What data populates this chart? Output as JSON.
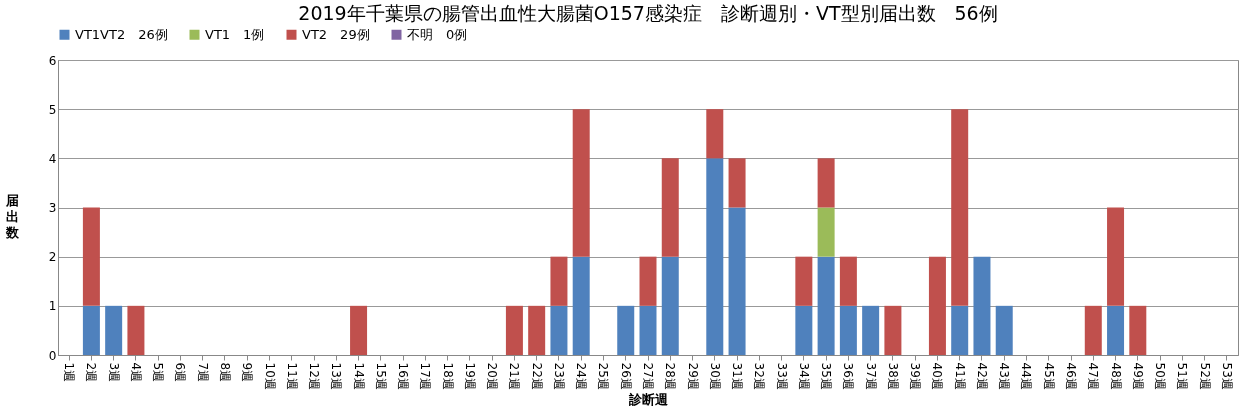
{
  "chart_data": {
    "type": "bar",
    "title": "2019年千葉県の腸管出血性大腸菌O157感染症　診断週別・VT型別届出数　56例",
    "xlabel": "診断週",
    "ylabel": "届出数",
    "categories": [
      "1週",
      "2週",
      "3週",
      "4週",
      "5週",
      "6週",
      "7週",
      "8週",
      "9週",
      "10週",
      "11週",
      "12週",
      "13週",
      "14週",
      "15週",
      "16週",
      "17週",
      "18週",
      "19週",
      "20週",
      "21週",
      "22週",
      "23週",
      "24週",
      "25週",
      "26週",
      "27週",
      "28週",
      "29週",
      "30週",
      "31週",
      "32週",
      "33週",
      "34週",
      "35週",
      "36週",
      "37週",
      "38週",
      "39週",
      "40週",
      "41週",
      "42週",
      "43週",
      "44週",
      "45週",
      "46週",
      "47週",
      "48週",
      "49週",
      "50週",
      "51週",
      "52週",
      "53週"
    ],
    "stacked": true,
    "series": [
      {
        "name": "VT1VT2　26例",
        "color": "#4f81bd",
        "values": [
          0,
          1,
          1,
          0,
          0,
          0,
          0,
          0,
          0,
          0,
          0,
          0,
          0,
          0,
          0,
          0,
          0,
          0,
          0,
          0,
          0,
          0,
          1,
          2,
          0,
          1,
          1,
          2,
          0,
          4,
          3,
          0,
          0,
          1,
          2,
          1,
          1,
          0,
          0,
          0,
          1,
          2,
          1,
          0,
          0,
          0,
          0,
          1,
          0,
          0,
          0,
          0,
          0
        ]
      },
      {
        "name": "VT1　1例",
        "color": "#9bbb59",
        "values": [
          0,
          0,
          0,
          0,
          0,
          0,
          0,
          0,
          0,
          0,
          0,
          0,
          0,
          0,
          0,
          0,
          0,
          0,
          0,
          0,
          0,
          0,
          0,
          0,
          0,
          0,
          0,
          0,
          0,
          0,
          0,
          0,
          0,
          0,
          1,
          0,
          0,
          0,
          0,
          0,
          0,
          0,
          0,
          0,
          0,
          0,
          0,
          0,
          0,
          0,
          0,
          0,
          0
        ]
      },
      {
        "name": "VT2　29例",
        "color": "#c0504d",
        "values": [
          0,
          2,
          0,
          1,
          0,
          0,
          0,
          0,
          0,
          0,
          0,
          0,
          0,
          1,
          0,
          0,
          0,
          0,
          0,
          0,
          1,
          1,
          1,
          3,
          0,
          0,
          1,
          2,
          0,
          1,
          1,
          0,
          0,
          1,
          1,
          1,
          0,
          1,
          0,
          2,
          4,
          0,
          0,
          0,
          0,
          0,
          1,
          2,
          1,
          0,
          0,
          0,
          0
        ]
      },
      {
        "name": "不明　0例",
        "color": "#8064a2",
        "values": [
          0,
          0,
          0,
          0,
          0,
          0,
          0,
          0,
          0,
          0,
          0,
          0,
          0,
          0,
          0,
          0,
          0,
          0,
          0,
          0,
          0,
          0,
          0,
          0,
          0,
          0,
          0,
          0,
          0,
          0,
          0,
          0,
          0,
          0,
          0,
          0,
          0,
          0,
          0,
          0,
          0,
          0,
          0,
          0,
          0,
          0,
          0,
          0,
          0,
          0,
          0,
          0,
          0
        ]
      }
    ],
    "ylim": [
      0,
      6
    ],
    "yticks": [
      0,
      1,
      2,
      3,
      4,
      5,
      6
    ],
    "grid": "y",
    "legend": "top"
  }
}
